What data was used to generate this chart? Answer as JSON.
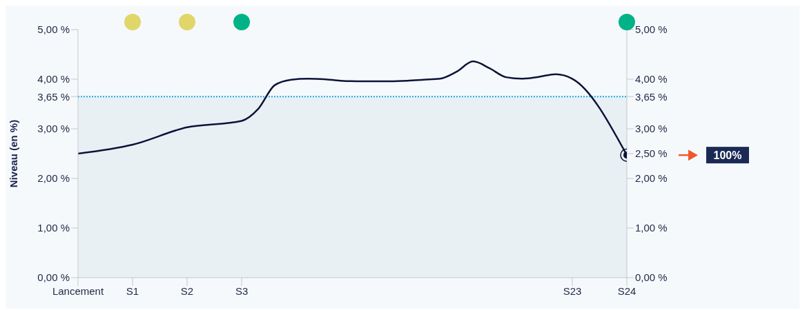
{
  "chart_data": {
    "type": "line",
    "ylabel": "Niveau (en %)",
    "categories": [
      "Lancement",
      "S1",
      "S2",
      "S3",
      null,
      null,
      null,
      null,
      null,
      null,
      null,
      null,
      null,
      null,
      null,
      null,
      null,
      null,
      null,
      null,
      null,
      null,
      null,
      "S23",
      "S24"
    ],
    "series": [
      {
        "color": "#0d1238",
        "values": [
          2.5,
          2.68,
          3.03,
          3.16,
          3.4,
          3.88,
          3.99,
          4.01,
          4.0,
          3.97,
          3.96,
          3.96,
          3.96,
          3.97,
          3.99,
          4.01,
          4.15,
          4.36,
          4.22,
          4.04,
          4.01,
          4.05,
          4.1,
          4.01,
          2.47
        ]
      }
    ],
    "ylim": [
      0,
      5
    ],
    "yticks": [
      {
        "value": 0,
        "label": "0,00 %"
      },
      {
        "value": 1,
        "label": "1,00 %"
      },
      {
        "value": 2,
        "label": "2,00 %"
      },
      {
        "value": 3,
        "label": "3,00 %"
      },
      {
        "value": 3.65,
        "label": "3,65 %"
      },
      {
        "value": 4,
        "label": "4,00 %"
      },
      {
        "value": 5,
        "label": "5,00 %"
      }
    ],
    "y2lim": [
      0,
      5
    ],
    "y2ticks": [
      {
        "value": 0,
        "label": "0,00 %"
      },
      {
        "value": 1,
        "label": "1,00 %"
      },
      {
        "value": 2,
        "label": "2,00 %"
      },
      {
        "value": 2.5,
        "label": "2,50 %"
      },
      {
        "value": 3,
        "label": "3,00 %"
      },
      {
        "value": 3.65,
        "label": "3,65 %"
      },
      {
        "value": 4,
        "label": "4,00 %"
      },
      {
        "value": 5,
        "label": "5,00 %"
      }
    ],
    "bands": [
      {
        "axis": "y",
        "from": 0,
        "to": 3.65,
        "color": "#e9f0f4"
      }
    ],
    "ref_lines": [
      {
        "axis": "y",
        "value": 3.65,
        "color": "#1aa7e0",
        "line_style": "dotted"
      }
    ],
    "annotations": [
      "100%"
    ],
    "grid": false,
    "legend": false
  }
}
